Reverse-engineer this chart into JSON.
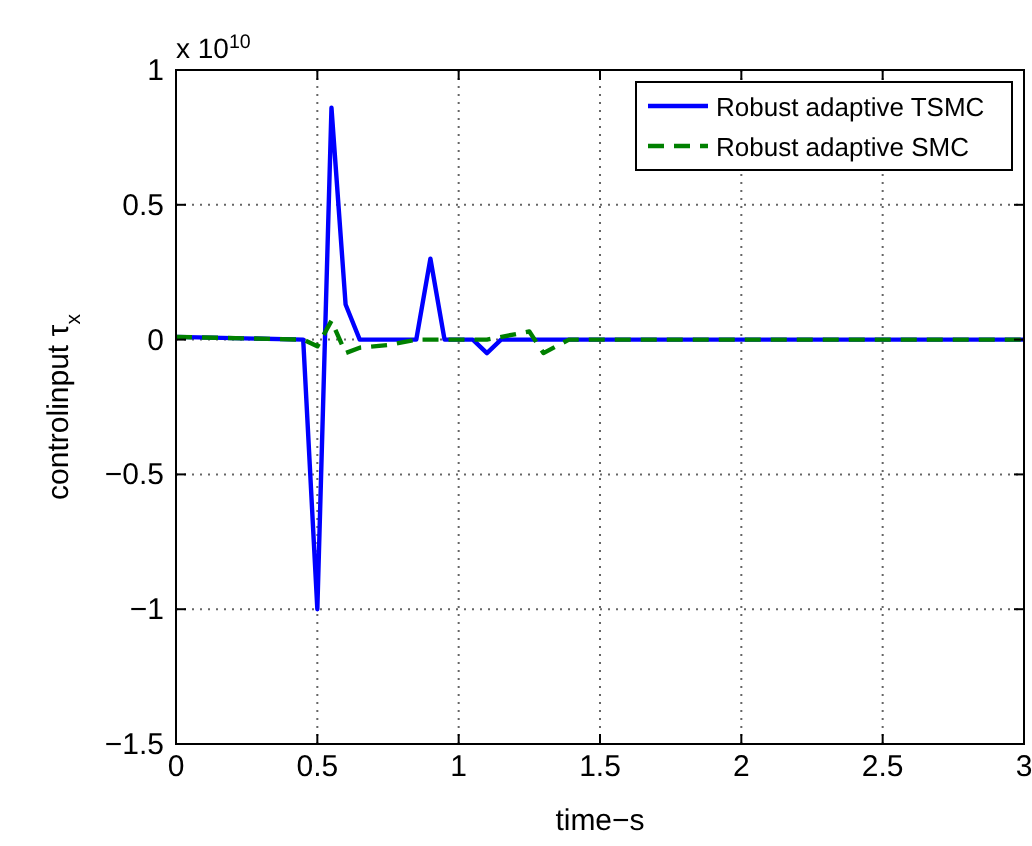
{
  "chart_data": {
    "type": "line",
    "xlabel": "time−s",
    "ylabel": "controlinput τ$_{x}$",
    "annotations": [
      "x 10$^{10}$"
    ],
    "xlim": [
      0,
      3
    ],
    "xticks": [
      0,
      0.5,
      1,
      1.5,
      2,
      2.5,
      3
    ],
    "ylim": [
      -1.5,
      1
    ],
    "yticks": [
      -1.5,
      -1,
      -0.5,
      0,
      0.5,
      1
    ],
    "grid": true,
    "legend": "top right",
    "series": [
      {
        "name": "Robust adaptive TSMC",
        "color": "#0000ff",
        "line_style": "solid",
        "x": [
          0,
          0.45,
          0.5,
          0.55,
          0.6,
          0.65,
          0.85,
          0.9,
          0.95,
          1.05,
          1.1,
          1.15,
          3
        ],
        "values": [
          0.01,
          0,
          -1.0,
          0.86,
          0.13,
          0,
          0,
          0.3,
          0,
          0,
          -0.05,
          0,
          0
        ]
      },
      {
        "name": "Robust adaptive SMC",
        "color": "#008000",
        "line_style": "dashed",
        "x": [
          0,
          0.45,
          0.5,
          0.55,
          0.6,
          0.65,
          0.75,
          0.85,
          1.1,
          1.25,
          1.3,
          1.39,
          3
        ],
        "values": [
          0.01,
          0,
          -0.025,
          0.07,
          -0.05,
          -0.03,
          -0.02,
          0,
          0,
          0.03,
          -0.05,
          0,
          0
        ]
      }
    ]
  }
}
